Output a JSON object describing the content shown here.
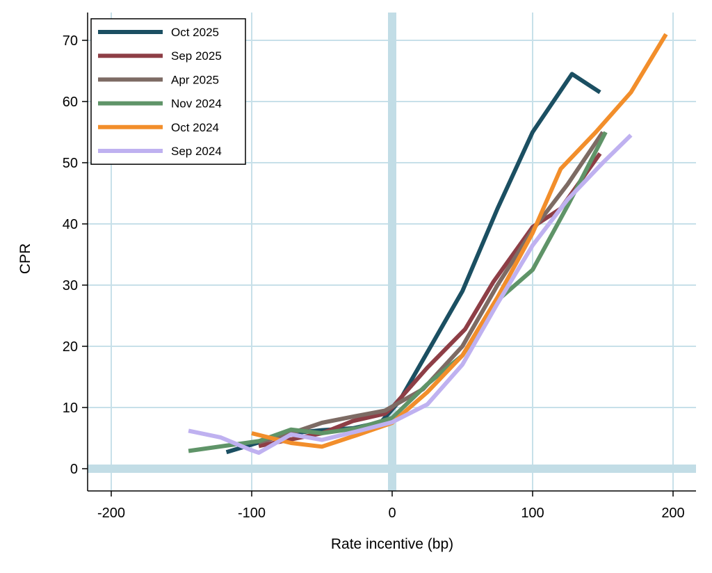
{
  "chart_data": {
    "type": "line",
    "title": "",
    "xlabel": "Rate incentive (bp)",
    "ylabel": "CPR",
    "xlim": [
      -215,
      215
    ],
    "ylim": [
      -4,
      75
    ],
    "xticks": [
      -200,
      -100,
      0,
      100,
      200
    ],
    "yticks": [
      0,
      10,
      20,
      30,
      40,
      50,
      60,
      70
    ],
    "grid": true,
    "grid_color": "#c7e0e9",
    "reference_lines": {
      "x": 0,
      "y": 0,
      "color": "#c2dde6"
    },
    "legend_position": "top-left",
    "series": [
      {
        "name": "Oct 2025",
        "color": "#1b4f62",
        "x": [
          -118,
          -95,
          -72,
          -50,
          -28,
          -8,
          5,
          30,
          50,
          75,
          100,
          128,
          148
        ],
        "y": [
          2.7,
          4.3,
          5.8,
          6.3,
          6.6,
          7.6,
          11,
          21,
          29,
          42.5,
          55,
          64.5,
          61.5
        ]
      },
      {
        "name": "Sep 2025",
        "color": "#8e3e46",
        "x": [
          -95,
          -72,
          -50,
          -28,
          -5,
          0,
          25,
          52,
          72,
          100,
          120,
          148
        ],
        "y": [
          3.7,
          4.8,
          5.8,
          7.8,
          9.0,
          10,
          16.5,
          22.8,
          30.5,
          39.5,
          42.5,
          51.5
        ]
      },
      {
        "name": "Apr 2025",
        "color": "#7d6b64",
        "x": [
          -95,
          -72,
          -50,
          -28,
          -5,
          22,
          50,
          75,
          100,
          125,
          150
        ],
        "y": [
          4.3,
          5.8,
          7.5,
          8.5,
          9.5,
          13,
          20,
          30,
          39,
          46.5,
          55
        ]
      },
      {
        "name": "Nov 2024",
        "color": "#5f9468",
        "x": [
          -145,
          -120,
          -95,
          -72,
          -50,
          -25,
          0,
          25,
          50,
          75,
          100,
          125,
          152
        ],
        "y": [
          2.9,
          3.7,
          4.5,
          6.4,
          5.8,
          6.6,
          8.3,
          13.8,
          18.5,
          27.5,
          32.5,
          43,
          55
        ]
      },
      {
        "name": "Oct 2024",
        "color": "#f28e2b",
        "x": [
          -100,
          -72,
          -50,
          -25,
          0,
          25,
          50,
          75,
          100,
          120,
          145,
          170,
          195
        ],
        "y": [
          5.8,
          4.2,
          3.6,
          5.5,
          7.5,
          12.5,
          18.5,
          28,
          38.5,
          49,
          55,
          61.5,
          71
        ]
      },
      {
        "name": "Sep 2024",
        "color": "#bfb1f0",
        "x": [
          -145,
          -122,
          -100,
          -95,
          -72,
          -50,
          -25,
          0,
          25,
          50,
          75,
          100,
          125,
          150,
          170
        ],
        "y": [
          6.2,
          5.1,
          3.0,
          2.6,
          5.6,
          4.7,
          6.1,
          7.6,
          10.5,
          17,
          27,
          36.5,
          44,
          50,
          54.5
        ]
      }
    ]
  }
}
